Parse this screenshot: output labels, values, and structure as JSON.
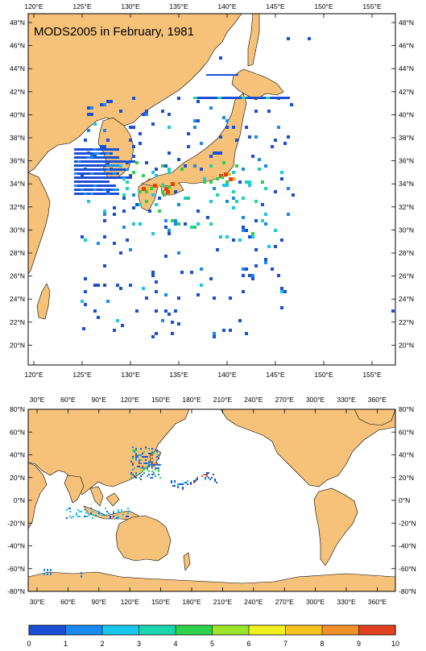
{
  "title": "MODS2005 in February, 1981",
  "colors": {
    "land": "#f6c27a",
    "ocean": "#ffffff",
    "frame": "#000000",
    "scale": [
      "#1a4fd6",
      "#1a8af0",
      "#19c6ee",
      "#1ad6b0",
      "#2dd24a",
      "#9be42a",
      "#eef020",
      "#f7c21e",
      "#f2902a",
      "#e0401e"
    ]
  },
  "top_map": {
    "lon_labels": [
      "120°E",
      "125°E",
      "130°E",
      "135°E",
      "140°E",
      "145°E",
      "150°E",
      "155°E"
    ],
    "lat_labels": [
      "48°N",
      "46°N",
      "44°N",
      "42°N",
      "40°N",
      "38°N",
      "36°N",
      "34°N",
      "32°N",
      "30°N",
      "28°N",
      "26°N",
      "24°N",
      "22°N",
      "20°N"
    ]
  },
  "bottom_map": {
    "lon_labels": [
      "30°E",
      "60°E",
      "90°E",
      "120°E",
      "150°E",
      "180°E",
      "210°E",
      "240°E",
      "270°E",
      "300°E",
      "330°E",
      "360°E"
    ],
    "lat_labels": [
      "80°N",
      "60°N",
      "40°N",
      "20°N",
      "0°N",
      "-20°N",
      "-40°N",
      "-60°N",
      "-80°N"
    ]
  },
  "colorbar": {
    "labels": [
      "0",
      "1",
      "2",
      "3",
      "4",
      "5",
      "6",
      "7",
      "8",
      "9",
      "10"
    ]
  }
}
